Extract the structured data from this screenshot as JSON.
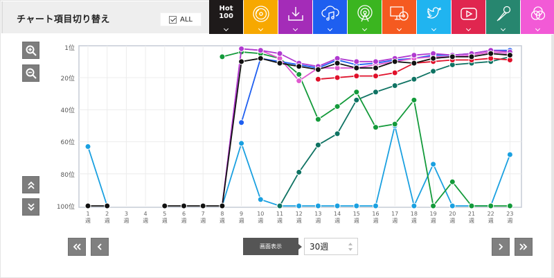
{
  "header": {
    "title": "チャート項目切り替え",
    "all_label": "ALL",
    "all_checked": true
  },
  "source_tabs": [
    {
      "id": "hot100",
      "label_line1": "Hot",
      "label_line2": "100",
      "icon": "text-label",
      "color": "#1e1a1a"
    },
    {
      "id": "sales",
      "icon": "vinyl-disc-icon",
      "color": "#f7a800"
    },
    {
      "id": "download",
      "icon": "download-icon",
      "color": "#a42cb8"
    },
    {
      "id": "streaming",
      "icon": "cloud-music-icon",
      "color": "#1e5ff0"
    },
    {
      "id": "radio",
      "icon": "radio-antenna-icon",
      "color": "#3bb520"
    },
    {
      "id": "pc-lookup",
      "icon": "computer-cd-icon",
      "color": "#f55a20"
    },
    {
      "id": "twitter",
      "icon": "twitter-bird-icon",
      "color": "#20b4f0"
    },
    {
      "id": "youtube",
      "icon": "video-play-icon",
      "color": "#e0264f"
    },
    {
      "id": "karaoke",
      "icon": "microphone-icon",
      "color": "#27866f"
    },
    {
      "id": "combined",
      "icon": "overlap-circles-icon",
      "color": "#f25ad6"
    }
  ],
  "controls": {
    "zoom_in": "zoom-in",
    "zoom_out": "zoom-out",
    "scroll_up": "scroll-up",
    "scroll_down": "scroll-down",
    "first": "«",
    "prev": "‹",
    "next": "›",
    "last": "»",
    "display_label": "画面表示",
    "weeks_value": "30週"
  },
  "chart_data": {
    "type": "line",
    "title": "",
    "xlabel": "",
    "ylabel": "",
    "y_inverted": true,
    "ylim": [
      1,
      100
    ],
    "y_ticks": [
      "1位",
      "20位",
      "40位",
      "60位",
      "80位",
      "100位"
    ],
    "y_tick_values": [
      1,
      20,
      40,
      60,
      80,
      100
    ],
    "x": [
      1,
      2,
      3,
      4,
      5,
      6,
      7,
      8,
      9,
      10,
      11,
      12,
      13,
      14,
      15,
      16,
      17,
      18,
      19,
      20,
      21,
      22,
      23
    ],
    "x_tick_suffix": "週",
    "grid": true,
    "legend": "none (series toggled via header tabs)",
    "series": [
      {
        "name": "Hot 100",
        "color": "#111111",
        "values": [
          100,
          100,
          null,
          null,
          100,
          100,
          100,
          100,
          10,
          8,
          11,
          13,
          15,
          11,
          14,
          14,
          10,
          11,
          8,
          7,
          7,
          5,
          6
        ]
      },
      {
        "name": "Download",
        "color": "#b03ad0",
        "values": [
          null,
          null,
          null,
          null,
          null,
          null,
          null,
          100,
          2,
          3,
          5,
          11,
          13,
          8,
          10,
          10,
          8,
          6,
          5,
          6,
          5,
          3,
          4
        ]
      },
      {
        "name": "Combined",
        "color": "#e05ad0",
        "values": [
          null,
          null,
          null,
          null,
          null,
          null,
          null,
          100,
          2,
          3,
          8,
          22,
          14,
          14,
          14,
          12,
          10,
          8,
          7,
          7,
          6,
          4,
          5
        ]
      },
      {
        "name": "Streaming",
        "color": "#1f5ff0",
        "values": [
          null,
          null,
          null,
          null,
          null,
          null,
          null,
          null,
          48,
          8,
          10,
          12,
          14,
          9,
          12,
          11,
          9,
          8,
          6,
          6,
          5,
          3,
          3
        ]
      },
      {
        "name": "Radio",
        "color": "#139a3a",
        "values": [
          null,
          null,
          null,
          null,
          null,
          null,
          null,
          7,
          4,
          5,
          8,
          18,
          46,
          38,
          29,
          51,
          49,
          34,
          100,
          85,
          100,
          100,
          100
        ]
      },
      {
        "name": "PC Lookup (red)",
        "color": "#e0102a",
        "values": [
          null,
          null,
          null,
          null,
          null,
          null,
          null,
          null,
          null,
          null,
          null,
          null,
          21,
          20,
          19,
          19,
          17,
          11,
          10,
          9,
          9,
          8,
          9
        ]
      },
      {
        "name": "Karaoke",
        "color": "#0f7363",
        "values": [
          null,
          null,
          null,
          null,
          null,
          null,
          null,
          null,
          null,
          null,
          100,
          79,
          62,
          55,
          34,
          29,
          25,
          21,
          16,
          12,
          11,
          10,
          7
        ]
      },
      {
        "name": "Twitter",
        "color": "#1aa0e0",
        "values": [
          63,
          100,
          null,
          null,
          null,
          null,
          null,
          100,
          61,
          96,
          100,
          100,
          100,
          100,
          100,
          100,
          50,
          100,
          74,
          100,
          100,
          100,
          68
        ]
      }
    ]
  }
}
